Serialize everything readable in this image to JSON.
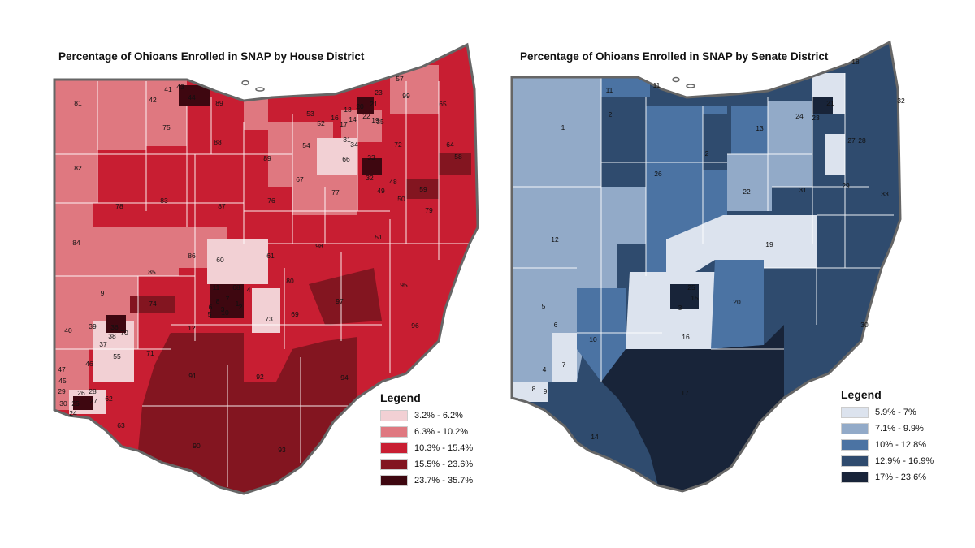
{
  "house_map": {
    "title": "Percentage of Ohioans Enrolled in SNAP by House District",
    "legend": {
      "title": "Legend",
      "entries": [
        {
          "label": "3.2% - 6.2%",
          "color": "#f2d0d4"
        },
        {
          "label": "6.3% - 10.2%",
          "color": "#df7880"
        },
        {
          "label": "10.3% - 15.4%",
          "color": "#c81e32"
        },
        {
          "label": "15.5% - 23.6%",
          "color": "#831520"
        },
        {
          "label": "23.7% - 35.7%",
          "color": "#3e0710"
        }
      ]
    },
    "district_labels": [
      "81",
      "42",
      "41",
      "43",
      "44",
      "89",
      "57",
      "23",
      "99",
      "65",
      "75",
      "53",
      "13",
      "20",
      "21",
      "52",
      "16",
      "17",
      "14",
      "22",
      "19",
      "35",
      "88",
      "31",
      "34",
      "72",
      "64",
      "54",
      "66",
      "82",
      "33",
      "58",
      "89",
      "67",
      "77",
      "32",
      "48",
      "59",
      "49",
      "50",
      "83",
      "76",
      "79",
      "78",
      "87",
      "98",
      "51",
      "84",
      "86",
      "60",
      "61",
      "85",
      "11",
      "68",
      "80",
      "9",
      "4",
      "74",
      "7",
      "1",
      "3",
      "97",
      "95",
      "8",
      "6",
      "2",
      "10",
      "5",
      "39",
      "36",
      "38",
      "69",
      "40",
      "70",
      "73",
      "12",
      "96",
      "37",
      "55",
      "71",
      "46",
      "47",
      "91",
      "92",
      "94",
      "45",
      "29",
      "26",
      "28",
      "27",
      "62",
      "30",
      "25",
      "24",
      "63",
      "90",
      "93"
    ]
  },
  "senate_map": {
    "title": "Percentage of Ohioans Enrolled in SNAP by Senate District",
    "legend": {
      "title": "Legend",
      "entries": [
        {
          "label": "5.9% - 7%",
          "color": "#dce3ee"
        },
        {
          "label": "7.1% - 9.9%",
          "color": "#92aac8"
        },
        {
          "label": "10% - 12.8%",
          "color": "#4b73a3"
        },
        {
          "label": "12.9% - 16.9%",
          "color": "#2f4b6e"
        },
        {
          "label": "17% - 23.6%",
          "color": "#182439"
        }
      ]
    },
    "district_labels": [
      "18",
      "11",
      "11",
      "32",
      "21",
      "24",
      "23",
      "1",
      "2",
      "13",
      "27",
      "2",
      "28",
      "26",
      "22",
      "31",
      "29",
      "33",
      "12",
      "19",
      "25",
      "15",
      "3",
      "5",
      "20",
      "6",
      "10",
      "16",
      "30",
      "7",
      "4",
      "17",
      "8",
      "9",
      "14"
    ]
  },
  "colors": {
    "outline": "#666666",
    "border": "#ffffff"
  }
}
